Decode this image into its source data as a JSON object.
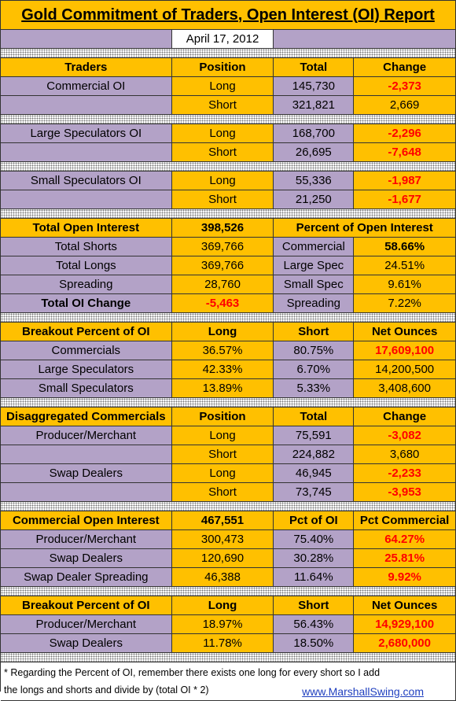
{
  "title": "Gold Commitment of Traders, Open Interest (OI) Report",
  "date": "April 17, 2012",
  "sections": [
    {
      "header": [
        "Traders",
        "Position",
        "Total",
        "Change"
      ],
      "rows": [
        [
          "Commercial OI",
          "Long",
          "145,730",
          "-2,373"
        ],
        [
          null,
          "Short",
          "321,821",
          "2,669"
        ]
      ]
    },
    {
      "rows": [
        [
          "Large Speculators OI",
          "Long",
          "168,700",
          "-2,296"
        ],
        [
          null,
          "Short",
          "26,695",
          "-7,648"
        ]
      ]
    },
    {
      "rows": [
        [
          "Small Speculators OI",
          "Long",
          "55,336",
          "-1,987"
        ],
        [
          null,
          "Short",
          "21,250",
          "-1,677"
        ]
      ]
    },
    {
      "header": [
        "Total Open Interest",
        "398,526",
        "Percent of Open Interest"
      ],
      "rows": [
        [
          "Total Shorts",
          "369,766",
          "Commercial",
          "58.66%"
        ],
        [
          "Total Longs",
          "369,766",
          "Large Spec",
          "24.51%"
        ],
        [
          "Spreading",
          "28,760",
          "Small Spec",
          "9.61%"
        ],
        [
          "Total OI Change",
          "-5,463",
          "Spreading",
          "7.22%"
        ]
      ]
    },
    {
      "header": [
        "Breakout Percent of OI",
        "Long",
        "Short",
        "Net Ounces"
      ],
      "rows": [
        [
          "Commercials",
          "36.57%",
          "80.75%",
          "17,609,100"
        ],
        [
          "Large Speculators",
          "42.33%",
          "6.70%",
          "14,200,500"
        ],
        [
          "Small Speculators",
          "13.89%",
          "5.33%",
          "3,408,600"
        ]
      ]
    },
    {
      "header": [
        "Disaggregated Commercials",
        "Position",
        "Total",
        "Change"
      ],
      "rows": [
        [
          "Producer/Merchant",
          "Long",
          "75,591",
          "-3,082"
        ],
        [
          null,
          "Short",
          "224,882",
          "3,680"
        ],
        [
          "Swap Dealers",
          "Long",
          "46,945",
          "-2,233"
        ],
        [
          null,
          "Short",
          "73,745",
          "-3,953"
        ]
      ]
    },
    {
      "header": [
        "Commercial Open Interest",
        "467,551",
        "Pct of OI",
        "Pct Commercial"
      ],
      "rows": [
        [
          "Producer/Merchant",
          "300,473",
          "75.40%",
          "64.27%"
        ],
        [
          "Swap Dealers",
          "120,690",
          "30.28%",
          "25.81%"
        ],
        [
          "Swap Dealer Spreading",
          "46,388",
          "11.64%",
          "9.92%"
        ]
      ]
    },
    {
      "header": [
        "Breakout Percent of OI",
        "Long",
        "Short",
        "Net Ounces"
      ],
      "rows": [
        [
          "Producer/Merchant",
          "18.97%",
          "56.43%",
          "14,929,100"
        ],
        [
          "Swap Dealers",
          "11.78%",
          "18.50%",
          "2,680,000"
        ]
      ]
    }
  ],
  "footnote": [
    "* Regarding the Percent of OI, remember there exists one long for every short so I add",
    "the longs and shorts and divide by (total OI * 2)"
  ],
  "link": "www.MarshallSwing.com"
}
